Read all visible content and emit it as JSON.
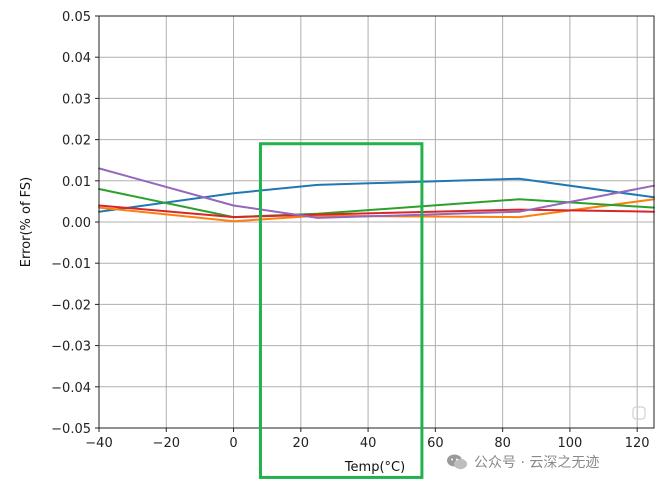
{
  "chart_data": {
    "type": "line",
    "xlabel": "Temp(°C)",
    "ylabel": "Error(% of FS)",
    "xlim": [
      -40,
      125
    ],
    "ylim": [
      -0.05,
      0.05
    ],
    "xticks": [
      -40,
      -20,
      0,
      20,
      40,
      60,
      80,
      100,
      120
    ],
    "yticks": [
      -0.05,
      -0.04,
      -0.03,
      -0.02,
      -0.01,
      0.0,
      0.01,
      0.02,
      0.03,
      0.04,
      0.05
    ],
    "xtick_labels": [
      "−40",
      "−20",
      "0",
      "20",
      "40",
      "60",
      "80",
      "100",
      "120"
    ],
    "ytick_labels": [
      "−0.05",
      "−0.04",
      "−0.03",
      "−0.02",
      "−0.01",
      "0.00",
      "0.01",
      "0.02",
      "0.03",
      "0.04",
      "0.05"
    ],
    "grid": true,
    "series": [
      {
        "color": "#1f77b4",
        "x": [
          -40,
          0,
          25,
          85,
          125
        ],
        "y": [
          0.0025,
          0.007,
          0.009,
          0.0105,
          0.006
        ]
      },
      {
        "color": "#ff7f0e",
        "x": [
          -40,
          0,
          25,
          85,
          125
        ],
        "y": [
          0.0035,
          0.0002,
          0.0015,
          0.0012,
          0.0055
        ]
      },
      {
        "color": "#2ca02c",
        "x": [
          -40,
          0,
          25,
          85,
          125
        ],
        "y": [
          0.008,
          0.0012,
          0.002,
          0.0055,
          0.0035
        ]
      },
      {
        "color": "#d62728",
        "x": [
          -40,
          0,
          25,
          85,
          125
        ],
        "y": [
          0.004,
          0.0012,
          0.0018,
          0.003,
          0.0025
        ]
      },
      {
        "color": "#9467bd",
        "x": [
          -40,
          0,
          25,
          85,
          125
        ],
        "y": [
          0.013,
          0.004,
          0.001,
          0.0025,
          0.0088
        ]
      }
    ],
    "highlight_box": {
      "color": "#22b14c",
      "x_range": [
        8,
        56
      ],
      "y_range": [
        -0.062,
        0.019
      ]
    }
  },
  "watermark": {
    "text": "公众号 · 云深之无迹"
  }
}
